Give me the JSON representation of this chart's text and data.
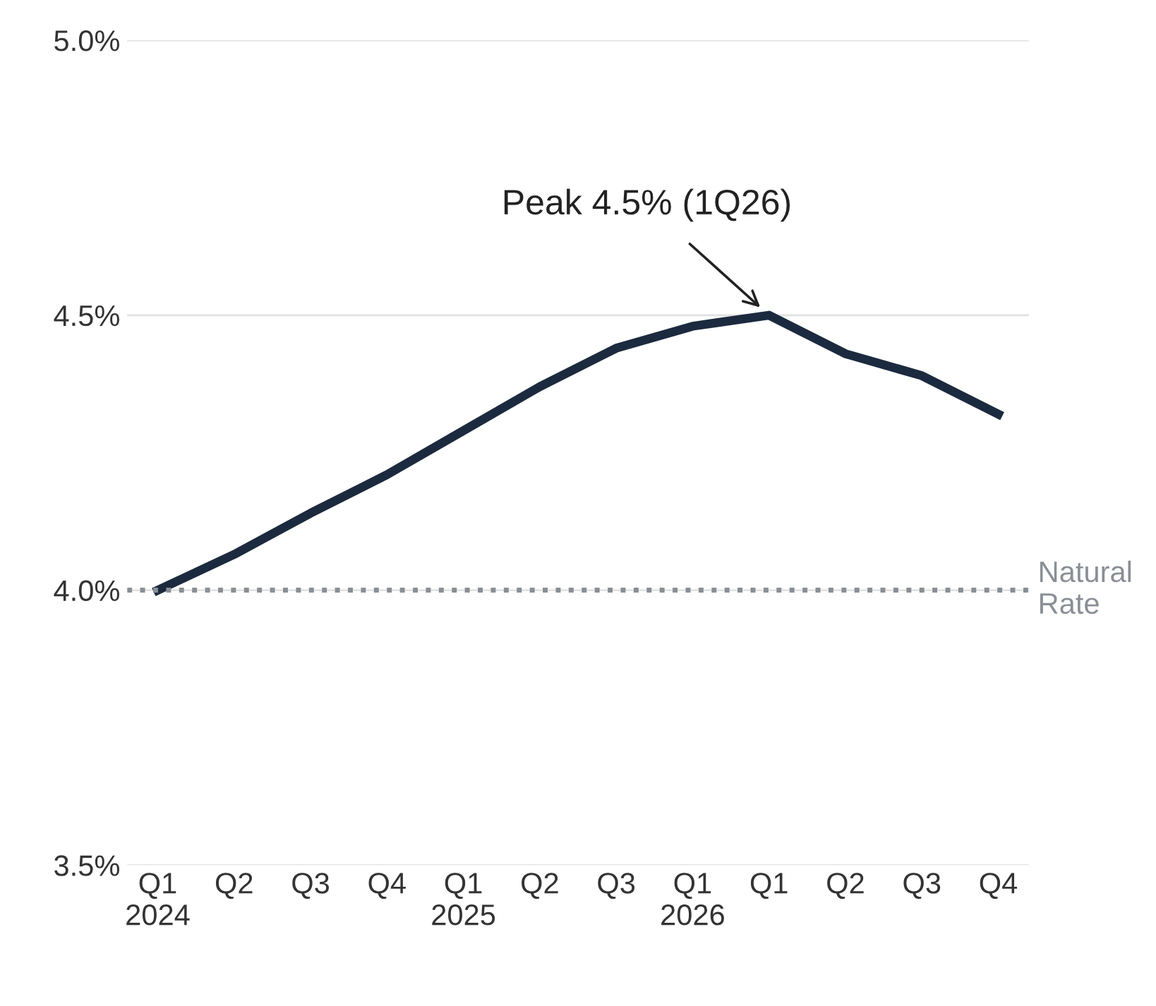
{
  "chart_data": {
    "type": "line",
    "categories": [
      "Q1\n2024",
      "Q2",
      "Q3",
      "Q4",
      "Q1\n2025",
      "Q2",
      "Q3",
      "Q1\n2026",
      "Q1",
      "Q2",
      "Q3",
      "Q4"
    ],
    "series": [
      {
        "color": "#1c2a3f",
        "values": [
          4.0,
          4.065,
          4.14,
          4.21,
          4.29,
          4.37,
          4.44,
          4.48,
          4.5,
          4.43,
          4.39,
          4.32
        ]
      }
    ],
    "ylim": [
      3.5,
      5.0
    ],
    "yticks": [
      {
        "value": 3.5,
        "label": "3.5%"
      },
      {
        "value": 4.0,
        "label": "4.0%"
      },
      {
        "value": 4.5,
        "label": "4.5%"
      },
      {
        "value": 5.0,
        "label": "5.0%"
      }
    ],
    "grid": "y",
    "legend": false,
    "marker": "none",
    "line_style": "solid",
    "ref_lines": [
      {
        "axis": "y",
        "value": 4.0,
        "label": "Natural\nRate",
        "color": "#8a8f96",
        "line_style": "dotted"
      }
    ],
    "annotations": [
      {
        "text": "Peak 4.5% (1Q26)",
        "x": "Q1",
        "y": 4.5
      }
    ]
  }
}
